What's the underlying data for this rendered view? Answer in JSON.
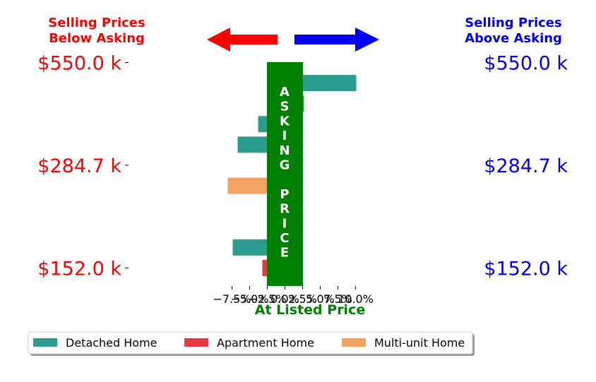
{
  "header": {
    "left_line1": "Selling Prices",
    "left_line2": "Below Asking",
    "right_line1": "Selling Prices",
    "right_line2": "Above Asking",
    "left_color": "#ff0000",
    "right_color": "#0000ee"
  },
  "center_label": {
    "letters": [
      "A",
      "S",
      "K",
      "I",
      "N",
      "G",
      "",
      "P",
      "R",
      "I",
      "C",
      "E"
    ],
    "color": "#008000"
  },
  "chart_data": {
    "type": "bar",
    "orientation": "horizontal",
    "xlabel": "At Listed Price",
    "xlim": [
      -0.09,
      0.11
    ],
    "xticks": [
      -0.075,
      -0.05,
      -0.025,
      0.0,
      0.025,
      0.05,
      0.075,
      0.1
    ],
    "xtick_labels": [
      "−7.5%",
      "−5.0%",
      "−2.5%",
      "0.0%",
      "2.5%",
      "5.0%",
      "7.5%",
      "10.0%"
    ],
    "price_labels": [
      "$550.0 k",
      "$284.7 k",
      "$152.0 k"
    ],
    "price_rows": [
      0,
      5,
      10
    ],
    "legend_placement": "bottom",
    "categories_colors": {
      "Detached Home": "#2a9d8f",
      "Apartment Home": "#e63946",
      "Multi-unit Home": "#f4a261"
    },
    "legend": [
      "Detached Home",
      "Apartment Home",
      "Multi-unit Home"
    ],
    "bars": [
      {
        "row": 1,
        "value": 0.101,
        "type": "Detached Home"
      },
      {
        "row": 2,
        "value": 0.027,
        "type": "Detached Home"
      },
      {
        "row": 3,
        "value": -0.038,
        "type": "Detached Home"
      },
      {
        "row": 4,
        "value": -0.067,
        "type": "Detached Home"
      },
      {
        "row": 5,
        "value": 0.012,
        "type": "Detached Home"
      },
      {
        "row": 6,
        "value": -0.081,
        "type": "Multi-unit Home"
      },
      {
        "row": 7,
        "value": -0.024,
        "type": "Multi-unit Home"
      },
      {
        "row": 8,
        "value": 0.012,
        "type": "Detached Home"
      },
      {
        "row": 9,
        "value": -0.074,
        "type": "Detached Home"
      },
      {
        "row": 10,
        "value": -0.032,
        "type": "Apartment Home"
      }
    ]
  }
}
